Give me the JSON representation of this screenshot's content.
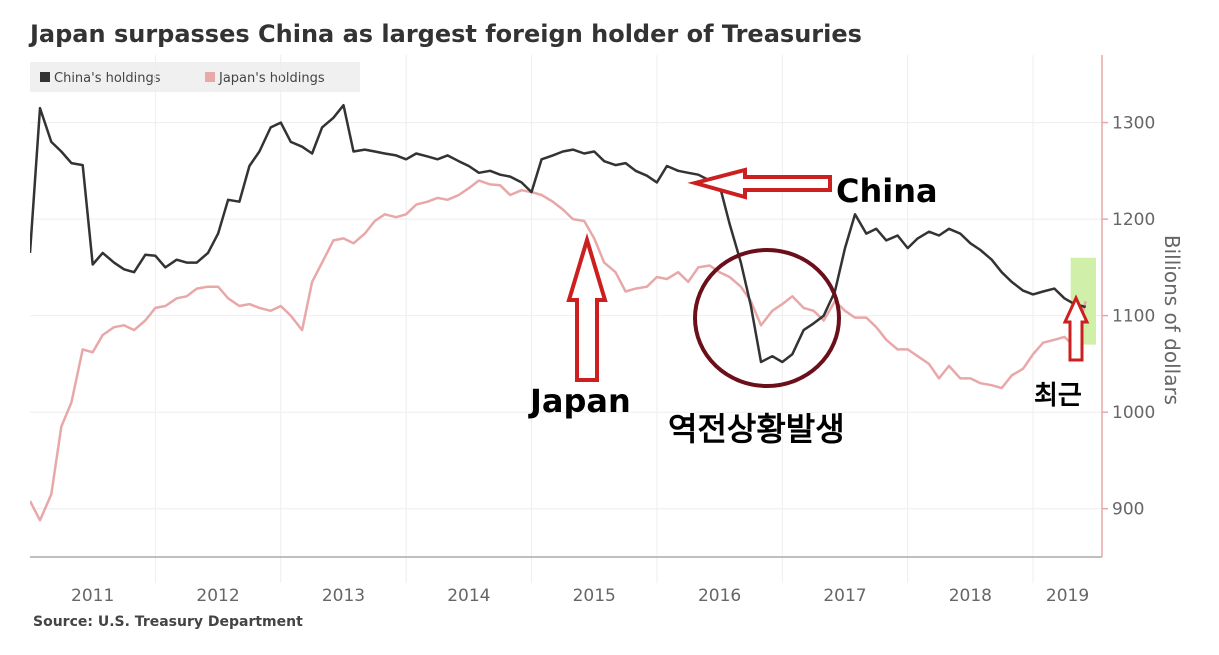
{
  "title": "Japan surpasses China as largest foreign holder of Treasuries",
  "source": "Source: U.S. Treasury Department",
  "legend": [
    {
      "label": "China's holdings",
      "color": "#333333"
    },
    {
      "label": "Japan's holdings",
      "color": "#e8a8a8"
    }
  ],
  "annotations": {
    "china": "China",
    "japan": "Japan",
    "reversal": "역전상황발생",
    "recent": "최근"
  },
  "colors": {
    "arrow_red": "#cc1f1f",
    "circle": "#6b0f1a",
    "highlight": "#c8ec9a",
    "axis_red": "#e8a8a8"
  },
  "chart_data": {
    "type": "line",
    "ylabel": "Billions of dollars",
    "ylim": [
      850,
      1370
    ],
    "yticks": [
      900,
      1000,
      1100,
      1200,
      1300
    ],
    "xlim": [
      2011.0,
      2019.55
    ],
    "year_labels": [
      "2011",
      "2012",
      "2013",
      "2014",
      "2015",
      "2016",
      "2017",
      "2018",
      "2019"
    ],
    "grid": true,
    "legend_position": "top-left",
    "series": [
      {
        "name": "China's holdings",
        "color": "#333333",
        "points": [
          [
            2011.0,
            1165
          ],
          [
            2011.08,
            1315
          ],
          [
            2011.17,
            1280
          ],
          [
            2011.25,
            1270
          ],
          [
            2011.33,
            1258
          ],
          [
            2011.42,
            1256
          ],
          [
            2011.5,
            1153
          ],
          [
            2011.58,
            1165
          ],
          [
            2011.67,
            1155
          ],
          [
            2011.75,
            1148
          ],
          [
            2011.83,
            1145
          ],
          [
            2011.92,
            1163
          ],
          [
            2012.0,
            1162
          ],
          [
            2012.08,
            1150
          ],
          [
            2012.17,
            1158
          ],
          [
            2012.25,
            1155
          ],
          [
            2012.33,
            1155
          ],
          [
            2012.42,
            1165
          ],
          [
            2012.5,
            1185
          ],
          [
            2012.58,
            1220
          ],
          [
            2012.67,
            1218
          ],
          [
            2012.75,
            1255
          ],
          [
            2012.83,
            1270
          ],
          [
            2012.92,
            1295
          ],
          [
            2013.0,
            1300
          ],
          [
            2013.08,
            1280
          ],
          [
            2013.17,
            1275
          ],
          [
            2013.25,
            1268
          ],
          [
            2013.33,
            1295
          ],
          [
            2013.42,
            1305
          ],
          [
            2013.5,
            1318
          ],
          [
            2013.58,
            1270
          ],
          [
            2013.67,
            1272
          ],
          [
            2013.75,
            1270
          ],
          [
            2013.83,
            1268
          ],
          [
            2013.92,
            1266
          ],
          [
            2014.0,
            1262
          ],
          [
            2014.08,
            1268
          ],
          [
            2014.17,
            1265
          ],
          [
            2014.25,
            1262
          ],
          [
            2014.33,
            1266
          ],
          [
            2014.42,
            1260
          ],
          [
            2014.5,
            1255
          ],
          [
            2014.58,
            1248
          ],
          [
            2014.67,
            1250
          ],
          [
            2014.75,
            1246
          ],
          [
            2014.83,
            1244
          ],
          [
            2014.92,
            1238
          ],
          [
            2015.0,
            1228
          ],
          [
            2015.08,
            1262
          ],
          [
            2015.17,
            1266
          ],
          [
            2015.25,
            1270
          ],
          [
            2015.33,
            1272
          ],
          [
            2015.42,
            1268
          ],
          [
            2015.5,
            1270
          ],
          [
            2015.58,
            1260
          ],
          [
            2015.67,
            1256
          ],
          [
            2015.75,
            1258
          ],
          [
            2015.83,
            1250
          ],
          [
            2015.92,
            1245
          ],
          [
            2016.0,
            1238
          ],
          [
            2016.08,
            1255
          ],
          [
            2016.17,
            1250
          ],
          [
            2016.25,
            1248
          ],
          [
            2016.33,
            1246
          ],
          [
            2016.42,
            1240
          ],
          [
            2016.5,
            1235
          ],
          [
            2016.58,
            1195
          ],
          [
            2016.67,
            1155
          ],
          [
            2016.75,
            1110
          ],
          [
            2016.83,
            1052
          ],
          [
            2016.92,
            1058
          ],
          [
            2017.0,
            1052
          ],
          [
            2017.08,
            1060
          ],
          [
            2017.17,
            1085
          ],
          [
            2017.25,
            1092
          ],
          [
            2017.33,
            1100
          ],
          [
            2017.42,
            1125
          ],
          [
            2017.5,
            1170
          ],
          [
            2017.58,
            1205
          ],
          [
            2017.67,
            1185
          ],
          [
            2017.75,
            1190
          ],
          [
            2017.83,
            1178
          ],
          [
            2017.92,
            1183
          ],
          [
            2018.0,
            1170
          ],
          [
            2018.08,
            1180
          ],
          [
            2018.17,
            1187
          ],
          [
            2018.25,
            1183
          ],
          [
            2018.33,
            1190
          ],
          [
            2018.42,
            1185
          ],
          [
            2018.5,
            1175
          ],
          [
            2018.58,
            1168
          ],
          [
            2018.67,
            1158
          ],
          [
            2018.75,
            1145
          ],
          [
            2018.83,
            1135
          ],
          [
            2018.92,
            1126
          ],
          [
            2019.0,
            1122
          ],
          [
            2019.08,
            1125
          ],
          [
            2019.17,
            1128
          ],
          [
            2019.25,
            1118
          ],
          [
            2019.33,
            1112
          ],
          [
            2019.42,
            1109
          ]
        ]
      },
      {
        "name": "Japan's holdings",
        "color": "#e8a8a8",
        "points": [
          [
            2011.0,
            908
          ],
          [
            2011.08,
            888
          ],
          [
            2011.17,
            915
          ],
          [
            2011.25,
            985
          ],
          [
            2011.33,
            1010
          ],
          [
            2011.42,
            1065
          ],
          [
            2011.5,
            1062
          ],
          [
            2011.58,
            1080
          ],
          [
            2011.67,
            1088
          ],
          [
            2011.75,
            1090
          ],
          [
            2011.83,
            1085
          ],
          [
            2011.92,
            1095
          ],
          [
            2012.0,
            1108
          ],
          [
            2012.08,
            1110
          ],
          [
            2012.17,
            1118
          ],
          [
            2012.25,
            1120
          ],
          [
            2012.33,
            1128
          ],
          [
            2012.42,
            1130
          ],
          [
            2012.5,
            1130
          ],
          [
            2012.58,
            1118
          ],
          [
            2012.67,
            1110
          ],
          [
            2012.75,
            1112
          ],
          [
            2012.83,
            1108
          ],
          [
            2012.92,
            1105
          ],
          [
            2013.0,
            1110
          ],
          [
            2013.08,
            1100
          ],
          [
            2013.17,
            1085
          ],
          [
            2013.25,
            1135
          ],
          [
            2013.33,
            1155
          ],
          [
            2013.42,
            1178
          ],
          [
            2013.5,
            1180
          ],
          [
            2013.58,
            1175
          ],
          [
            2013.67,
            1185
          ],
          [
            2013.75,
            1198
          ],
          [
            2013.83,
            1205
          ],
          [
            2013.92,
            1202
          ],
          [
            2014.0,
            1205
          ],
          [
            2014.08,
            1215
          ],
          [
            2014.17,
            1218
          ],
          [
            2014.25,
            1222
          ],
          [
            2014.33,
            1220
          ],
          [
            2014.42,
            1225
          ],
          [
            2014.5,
            1232
          ],
          [
            2014.58,
            1240
          ],
          [
            2014.67,
            1236
          ],
          [
            2014.75,
            1235
          ],
          [
            2014.83,
            1225
          ],
          [
            2014.92,
            1230
          ],
          [
            2015.0,
            1228
          ],
          [
            2015.08,
            1225
          ],
          [
            2015.17,
            1218
          ],
          [
            2015.25,
            1210
          ],
          [
            2015.33,
            1200
          ],
          [
            2015.42,
            1198
          ],
          [
            2015.5,
            1180
          ],
          [
            2015.58,
            1155
          ],
          [
            2015.67,
            1145
          ],
          [
            2015.75,
            1125
          ],
          [
            2015.83,
            1128
          ],
          [
            2015.92,
            1130
          ],
          [
            2016.0,
            1140
          ],
          [
            2016.08,
            1138
          ],
          [
            2016.17,
            1145
          ],
          [
            2016.25,
            1135
          ],
          [
            2016.33,
            1150
          ],
          [
            2016.42,
            1152
          ],
          [
            2016.5,
            1145
          ],
          [
            2016.58,
            1140
          ],
          [
            2016.67,
            1130
          ],
          [
            2016.75,
            1115
          ],
          [
            2016.83,
            1090
          ],
          [
            2016.92,
            1105
          ],
          [
            2017.0,
            1112
          ],
          [
            2017.08,
            1120
          ],
          [
            2017.17,
            1108
          ],
          [
            2017.25,
            1105
          ],
          [
            2017.33,
            1095
          ],
          [
            2017.42,
            1115
          ],
          [
            2017.5,
            1105
          ],
          [
            2017.58,
            1098
          ],
          [
            2017.67,
            1098
          ],
          [
            2017.75,
            1088
          ],
          [
            2017.83,
            1075
          ],
          [
            2017.92,
            1065
          ],
          [
            2018.0,
            1065
          ],
          [
            2018.08,
            1058
          ],
          [
            2018.17,
            1050
          ],
          [
            2018.25,
            1035
          ],
          [
            2018.33,
            1048
          ],
          [
            2018.42,
            1035
          ],
          [
            2018.5,
            1035
          ],
          [
            2018.58,
            1030
          ],
          [
            2018.67,
            1028
          ],
          [
            2018.75,
            1025
          ],
          [
            2018.83,
            1038
          ],
          [
            2018.92,
            1045
          ],
          [
            2019.0,
            1060
          ],
          [
            2019.08,
            1072
          ],
          [
            2019.17,
            1075
          ],
          [
            2019.25,
            1078
          ],
          [
            2019.33,
            1068
          ],
          [
            2019.42,
            1115
          ]
        ]
      }
    ]
  }
}
